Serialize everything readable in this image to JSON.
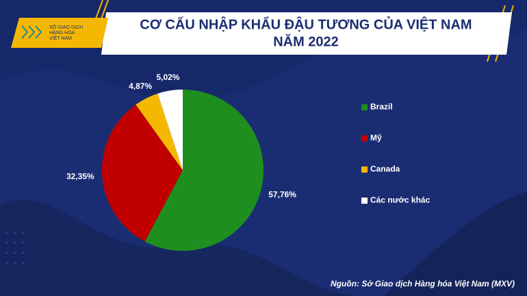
{
  "logo": [
    "SỞ GIAO DỊCH",
    "HÀNG HÓA",
    "VIỆT NAM"
  ],
  "chart_data": {
    "type": "pie",
    "title_lines": [
      "CƠ CẤU NHẬP KHẨU ĐẬU TƯƠNG CỦA VIỆT NAM",
      "NĂM 2022"
    ],
    "categories": [
      "Brazil",
      "Mỹ",
      "Canada",
      "Các nước khác"
    ],
    "values": [
      57.76,
      32.35,
      4.87,
      5.02
    ],
    "value_labels": [
      "57,76%",
      "32,35%",
      "4,87%",
      "5,02%"
    ],
    "colors": [
      "#1e8f1e",
      "#c00000",
      "#f5b800",
      "#ffffff"
    ],
    "legend": "right",
    "source": "Nguồn: Sở Giao dịch Hàng hóa Việt Nam (MXV)"
  }
}
